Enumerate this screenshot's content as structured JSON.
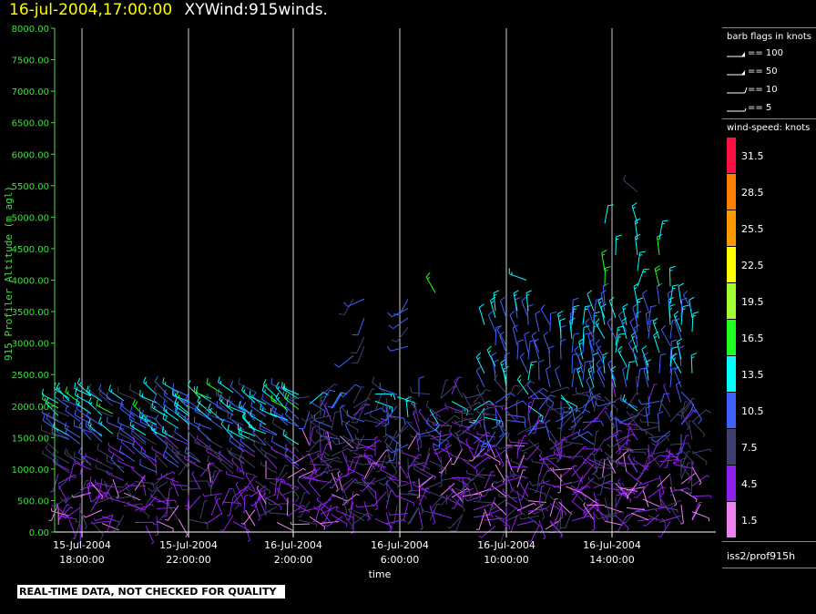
{
  "title": {
    "date": "16-jul-2004,17:00:00",
    "name": "XYWind:915winds."
  },
  "qc_note": "REAL-TIME DATA, NOT CHECKED FOR QUALITY",
  "legend": {
    "barb_header": "barb flags in knots",
    "barbs": [
      {
        "label": "== 100",
        "kind": "flag"
      },
      {
        "label": "== 50",
        "kind": "flag"
      },
      {
        "label": "== 10",
        "kind": "full"
      },
      {
        "label": "== 5",
        "kind": "half"
      }
    ],
    "speed_header": "wind-speed: knots",
    "scale": [
      {
        "label": "31.5",
        "color": "#ff1040"
      },
      {
        "label": "28.5",
        "color": "#ff7f00"
      },
      {
        "label": "25.5",
        "color": "#ff9900"
      },
      {
        "label": "22.5",
        "color": "#ffff00"
      },
      {
        "label": "19.5",
        "color": "#a0ff30"
      },
      {
        "label": "16.5",
        "color": "#20ff20"
      },
      {
        "label": "13.5",
        "color": "#00ffff"
      },
      {
        "label": "10.5",
        "color": "#4060ff"
      },
      {
        "label": "7.5",
        "color": "#404070"
      },
      {
        "label": "4.5",
        "color": "#9020f0"
      },
      {
        "label": "1.5",
        "color": "#f080f0"
      }
    ],
    "station": "iss2/prof915h"
  },
  "colors": {
    "axis": "#44dd44",
    "grid": "#cccccc",
    "text": "#ffffff"
  },
  "chart_data": {
    "type": "scatter",
    "ylabel": "915 Profiler Altitude (m agl)",
    "xlabel": "time",
    "ylim": [
      0,
      8000
    ],
    "xlim": [
      "2004-07-15 17:00",
      "2004-07-16 17:00"
    ],
    "y_ticks": [
      "0.00",
      "500.00",
      "1000.00",
      "1500.00",
      "2000.00",
      "2500.00",
      "3000.00",
      "3500.00",
      "4000.00",
      "4500.00",
      "5000.00",
      "5500.00",
      "6000.00",
      "6500.00",
      "7000.00",
      "7500.00",
      "8000.00"
    ],
    "x_ticks": [
      {
        "date": "15-Jul-2004",
        "time": "18:00:00"
      },
      {
        "date": "15-Jul-2004",
        "time": "22:00:00"
      },
      {
        "date": "16-Jul-2004",
        "time": "2:00:00"
      },
      {
        "date": "16-Jul-2004",
        "time": "6:00:00"
      },
      {
        "date": "16-Jul-2004",
        "time": "10:00:00"
      },
      {
        "date": "16-Jul-2004",
        "time": "14:00:00"
      }
    ],
    "grid": "vertical lines at x ticks",
    "series_note": "wind barbs at profiler range gates, colored by wind speed (knots)"
  }
}
